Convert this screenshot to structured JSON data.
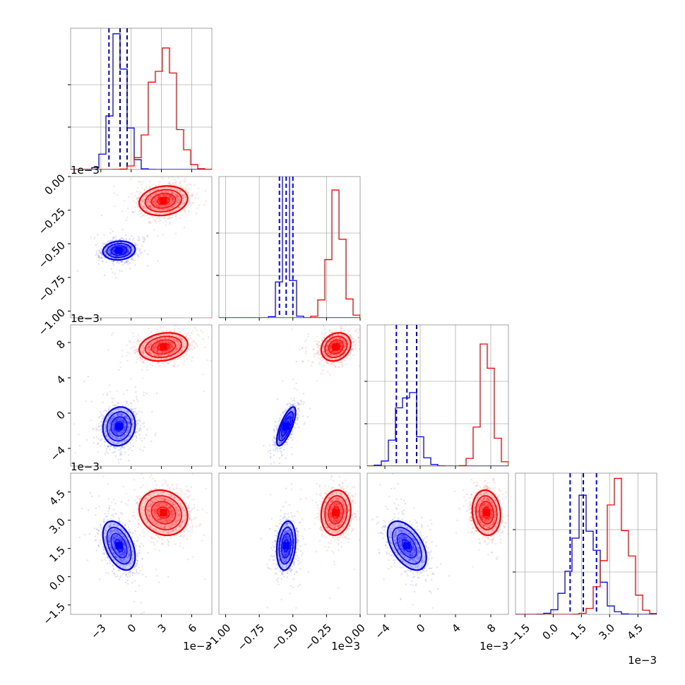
{
  "chart_data": {
    "type": "corner",
    "grid": true,
    "colors": {
      "blue": "#0000ff",
      "red": "#ff0000",
      "grid": "#b0b0b0"
    },
    "parameters": [
      {
        "range": [
          -0.006,
          0.008
        ],
        "ticks": [
          -0.003,
          0,
          0.003,
          0.006
        ],
        "tick_labels": [
          "−3",
          "0",
          "3",
          "6"
        ],
        "offset_text": "1e−3"
      },
      {
        "range": [
          -0.00105,
          0.0
        ],
        "ticks": [
          -0.001,
          -0.00075,
          -0.0005,
          -0.00025,
          0
        ],
        "tick_labels": [
          "−1.00",
          "−0.75",
          "−0.50",
          "−0.25",
          "0.00"
        ],
        "offset_text": "1e−3"
      },
      {
        "range": [
          -0.006,
          0.01
        ],
        "ticks": [
          -0.004,
          0,
          0.004,
          0.008
        ],
        "tick_labels": [
          "−4",
          "0",
          "4",
          "8"
        ],
        "offset_text": "1e−3"
      },
      {
        "range": [
          -0.002,
          0.0055
        ],
        "ticks": [
          -0.0015,
          0,
          0.0015,
          0.003,
          0.0045
        ],
        "tick_labels": [
          "−1.5",
          "0.0",
          "1.5",
          "3.0",
          "4.5"
        ],
        "offset_text": "1e−3"
      }
    ],
    "series": [
      {
        "color": "blue",
        "mean": [
          -0.0012,
          -0.00055,
          -0.0015,
          0.00165
        ],
        "std": [
          0.0008,
          3.5e-05,
          0.0011,
          0.00065
        ],
        "quantiles": [
          [
            -0.0022,
            -0.0011,
            -0.0004
          ],
          [
            -0.0006,
            -0.00055,
            -0.0005
          ],
          [
            -0.0027,
            -0.0015,
            -0.0004
          ],
          [
            0.0009,
            0.0016,
            0.0023
          ]
        ],
        "hist_peak_fraction": [
          0.95,
          0.95,
          0.6,
          0.8
        ]
      },
      {
        "color": "red",
        "mean": [
          0.0032,
          -0.00018,
          0.0075,
          0.0034
        ],
        "std": [
          0.0012,
          5.5e-05,
          0.0008,
          0.0006
        ],
        "hist_peak_fraction": [
          0.92,
          0.88,
          0.9,
          0.95
        ]
      }
    ],
    "correlations": {
      "0-1": [
        0.1,
        0.15
      ],
      "0-2": [
        0.1,
        0.2
      ],
      "1-2": [
        0.75,
        0.2
      ],
      "0-3": [
        -0.45,
        -0.15
      ],
      "1-3": [
        0.2,
        0.1
      ],
      "2-3": [
        -0.5,
        -0.1
      ]
    }
  }
}
